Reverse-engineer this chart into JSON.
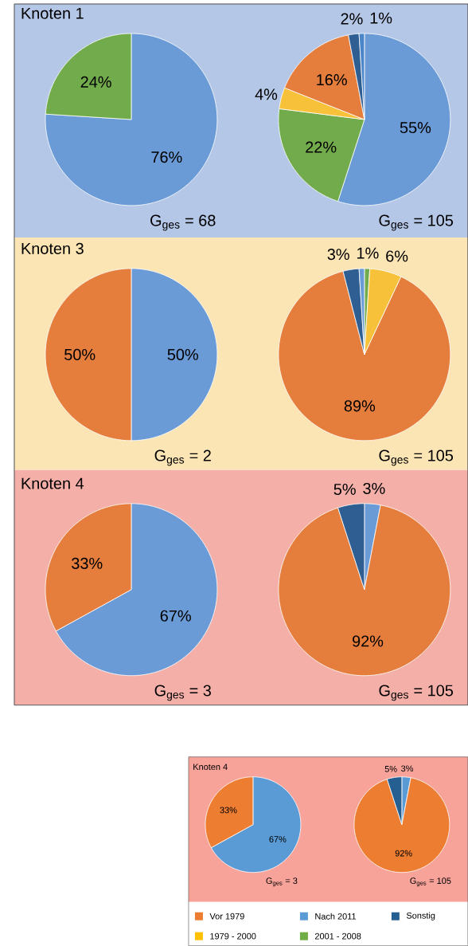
{
  "chart_data": [
    {
      "type": "pie",
      "title": "Knoten 1",
      "categories": [
        null,
        null
      ],
      "values": [
        76,
        24
      ],
      "colors": [
        "#6a9bd6",
        "#72ab4c"
      ],
      "value_labels": [
        "76%",
        "24%"
      ],
      "annotations": [
        "G$_{ges}$ = 68"
      ]
    },
    {
      "type": "pie",
      "categories": [
        null,
        null,
        null,
        null,
        null,
        null
      ],
      "values": [
        55,
        22,
        4,
        16,
        2,
        1
      ],
      "colors": [
        "#6a9bd6",
        "#72ab4c",
        "#f7c23a",
        "#e57e3c",
        "#2f5f92",
        "#4a86c8"
      ],
      "value_labels": [
        "55%",
        "22%",
        "4%",
        "16%",
        "2%",
        "1%"
      ],
      "annotations": [
        "G$_{ges}$ = 105"
      ]
    },
    {
      "type": "pie",
      "title": "Knoten 3",
      "categories": [
        null,
        null
      ],
      "values": [
        50,
        50
      ],
      "colors": [
        "#6a9bd6",
        "#e57e3c"
      ],
      "value_labels": [
        "50%",
        "50%"
      ],
      "annotations": [
        "G$_{ges}$ = 2"
      ]
    },
    {
      "type": "pie",
      "categories": [
        null,
        null,
        null,
        null,
        null
      ],
      "values": [
        1,
        6,
        89,
        3,
        1
      ],
      "colors": [
        "#72ab4c",
        "#f7c23a",
        "#e57e3c",
        "#2f5f92",
        "#6a9bd6"
      ],
      "value_labels": [
        "1%",
        "6%",
        "89%",
        "3%",
        null
      ],
      "annotations": [
        "G$_{ges}$ = 105"
      ]
    },
    {
      "type": "pie",
      "title": "Knoten 4",
      "categories": [
        null,
        null
      ],
      "values": [
        67,
        33
      ],
      "colors": [
        "#6a9bd6",
        "#e57e3c"
      ],
      "value_labels": [
        "67%",
        "33%"
      ],
      "annotations": [
        "G$_{ges}$ = 3"
      ]
    },
    {
      "type": "pie",
      "categories": [
        null,
        null,
        null
      ],
      "values": [
        3,
        92,
        5
      ],
      "colors": [
        "#6a9bd6",
        "#e57e3c",
        "#2f5f92"
      ],
      "value_labels": [
        "3%",
        "92%",
        "5%"
      ],
      "annotations": [
        "G$_{ges}$ = 105"
      ]
    },
    {
      "type": "pie",
      "title": "Knoten 4",
      "categories": [
        null,
        null
      ],
      "values": [
        67,
        33
      ],
      "colors": [
        "#5b9bd5",
        "#ed7d31"
      ],
      "value_labels": [
        "67%",
        "33%"
      ],
      "annotations": [
        "G$_{ges}$ = 3"
      ]
    },
    {
      "type": "pie",
      "categories": [
        null,
        null,
        null
      ],
      "values": [
        3,
        92,
        5
      ],
      "colors": [
        "#5b9bd5",
        "#ed7d31",
        "#255e91"
      ],
      "value_labels": [
        "3%",
        "92%",
        "5%"
      ],
      "annotations": [
        "G$_{ges}$ = 105"
      ]
    },
    {
      "type": "other",
      "categories": [
        "Vor 1979",
        "Nach 2011",
        "Sonstig",
        "1979 - 2000",
        "2001 - 2008"
      ],
      "colors": [
        "#ed7d31",
        "#5b9bd5",
        "#255e91",
        "#ffc000",
        "#70ad47"
      ]
    }
  ]
}
